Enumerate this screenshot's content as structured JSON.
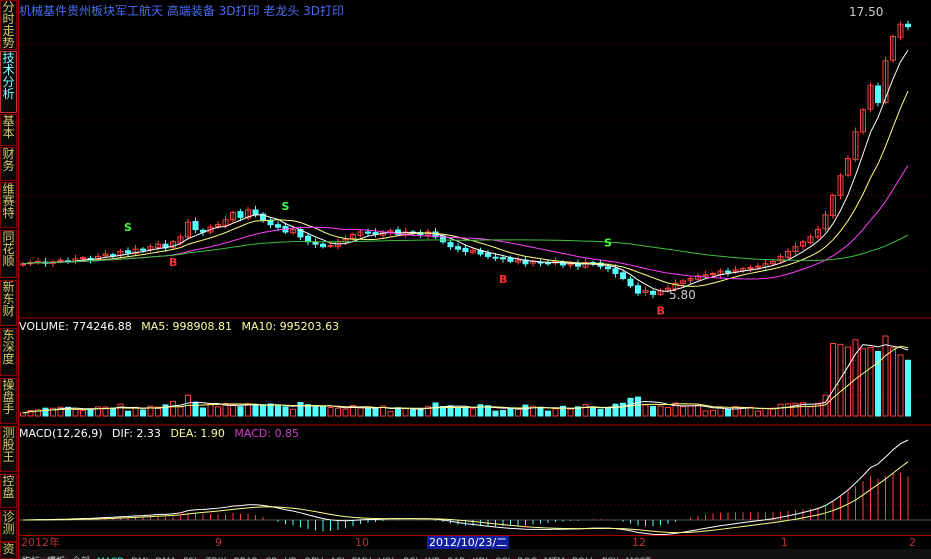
{
  "sidebar": {
    "items": [
      {
        "label": "分时走势",
        "active": false
      },
      {
        "label": "技术分析",
        "active": true
      },
      {
        "label": "基本",
        "active": false
      },
      {
        "label": "财务",
        "active": false
      },
      {
        "label": "维赛特",
        "active": false
      },
      {
        "label": "同花顺",
        "active": false
      },
      {
        "label": "新东财",
        "active": false
      },
      {
        "label": "东深度",
        "active": false
      },
      {
        "label": "操盘手",
        "active": false
      },
      {
        "label": "测股王",
        "active": false
      },
      {
        "label": "控盘",
        "active": false
      },
      {
        "label": "诊测",
        "active": false
      },
      {
        "label": "资",
        "active": false
      }
    ]
  },
  "header": {
    "title": "机械基件贵州板块军工航天 高端装备 3D打印 老龙头 3D打印"
  },
  "price_panel": {
    "high_label": "17.50",
    "low_label": "5.80",
    "signals": [
      {
        "type": "S",
        "index": 14
      },
      {
        "type": "S",
        "index": 35
      },
      {
        "type": "S",
        "index": 78
      },
      {
        "type": "B",
        "index": 20
      },
      {
        "type": "B",
        "index": 64
      },
      {
        "type": "B",
        "index": 85
      }
    ]
  },
  "volume_panel": {
    "name": "VOLUME: 774246.88",
    "ma5": "MA5: 998908.81",
    "ma10": "MA10: 995203.63"
  },
  "macd_panel": {
    "name": "MACD(12,26,9)",
    "dif": "DIF: 2.33",
    "dea": "DEA: 1.90",
    "macd": "MACD: 0.85"
  },
  "date_axis": {
    "labels": [
      "2012年",
      "9",
      "10",
      "12",
      "1",
      "2"
    ],
    "selected": "2012/10/23/二"
  },
  "bottom_tabs": [
    "指标",
    "模板",
    "全部",
    "MACD",
    "DMI",
    "DMA",
    "FSL",
    "TRIX",
    "BRAR",
    "CR",
    "VR",
    "OBV",
    "ASI",
    "EMV",
    "VOL",
    "RSI",
    "WR",
    "SAR",
    "KDJ",
    "CCI",
    "ROC",
    "MTM",
    "BOLL",
    "PSY",
    "MCST"
  ],
  "colors": {
    "up": "#ff4040",
    "down": "#54ffff",
    "ma5": "#ffffff",
    "ma10": "#ffff80",
    "ma20": "#ff40ff",
    "ma60": "#40c040",
    "title": "#4a6cf0",
    "grid": "#800000"
  },
  "chart_data": {
    "type": "candlestick",
    "price_range": [
      5.8,
      17.5
    ],
    "closes": [
      7.2,
      7.25,
      7.3,
      7.22,
      7.28,
      7.35,
      7.3,
      7.4,
      7.45,
      7.38,
      7.5,
      7.6,
      7.55,
      7.7,
      7.65,
      7.8,
      7.75,
      7.9,
      8.0,
      7.85,
      8.1,
      8.3,
      8.9,
      8.6,
      8.5,
      8.7,
      8.8,
      9.0,
      9.3,
      9.1,
      9.4,
      9.2,
      9.0,
      8.8,
      8.7,
      8.5,
      8.6,
      8.3,
      8.1,
      8.0,
      7.9,
      7.95,
      8.1,
      8.2,
      8.4,
      8.5,
      8.45,
      8.4,
      8.5,
      8.55,
      8.4,
      8.5,
      8.45,
      8.4,
      8.5,
      8.3,
      8.1,
      7.9,
      7.8,
      7.7,
      7.75,
      7.6,
      7.5,
      7.45,
      7.4,
      7.3,
      7.35,
      7.2,
      7.3,
      7.25,
      7.2,
      7.3,
      7.15,
      7.2,
      7.1,
      7.25,
      7.2,
      7.1,
      7.0,
      6.8,
      6.6,
      6.3,
      6.0,
      6.1,
      5.95,
      6.1,
      6.2,
      6.4,
      6.5,
      6.6,
      6.7,
      6.75,
      6.8,
      6.9,
      6.85,
      6.95,
      7.0,
      7.05,
      7.1,
      7.2,
      7.3,
      7.5,
      7.7,
      7.9,
      8.1,
      8.3,
      8.6,
      9.2,
      10.0,
      10.8,
      11.5,
      12.6,
      13.5,
      14.5,
      13.8,
      15.5,
      16.5,
      17.0,
      16.9
    ]
  }
}
